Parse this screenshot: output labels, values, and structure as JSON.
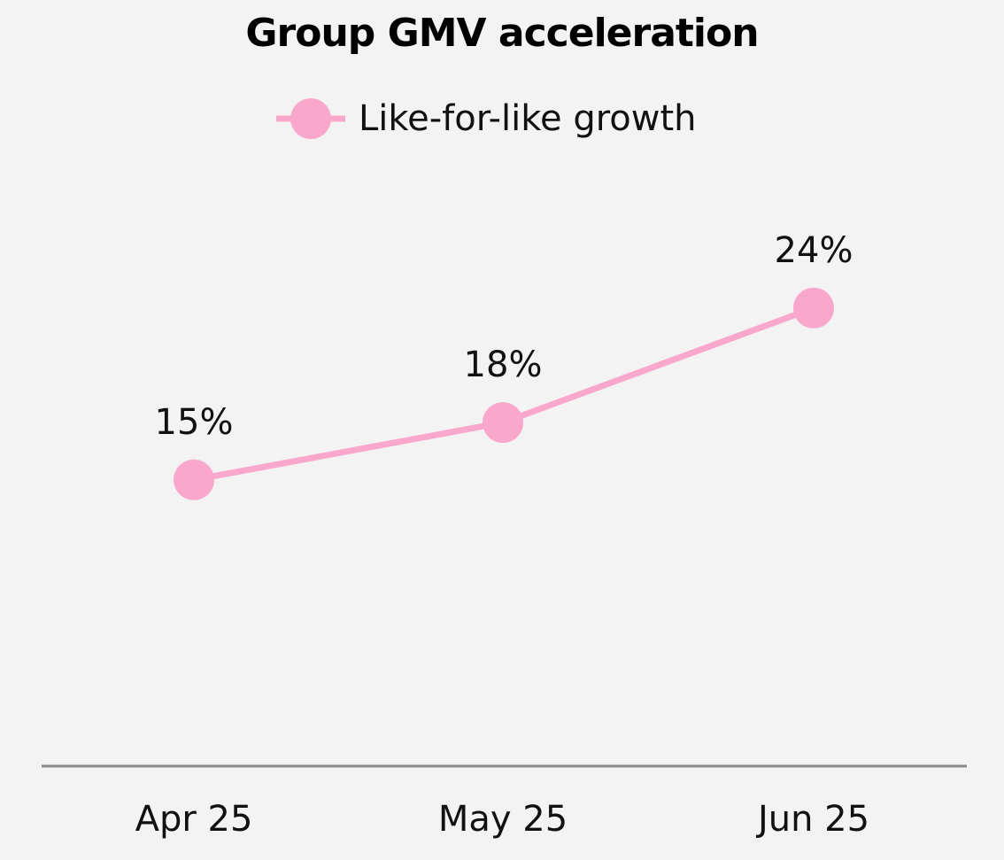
{
  "chart_data": {
    "type": "line",
    "title": "Group GMV acceleration",
    "categories": [
      "Apr 25",
      "May 25",
      "Jun 25"
    ],
    "series": [
      {
        "name": "Like-for-like growth",
        "values": [
          15,
          18,
          24
        ],
        "data_labels": [
          "15%",
          "18%",
          "24%"
        ]
      }
    ],
    "xlabel": "",
    "ylabel": "",
    "ylim": [
      0,
      33
    ],
    "grid": false,
    "legend": "top-center",
    "colors": {
      "series": "#f9a8cc",
      "axis": "#8a8a8a",
      "background": "#f3f3f3",
      "text": "#111111"
    }
  }
}
